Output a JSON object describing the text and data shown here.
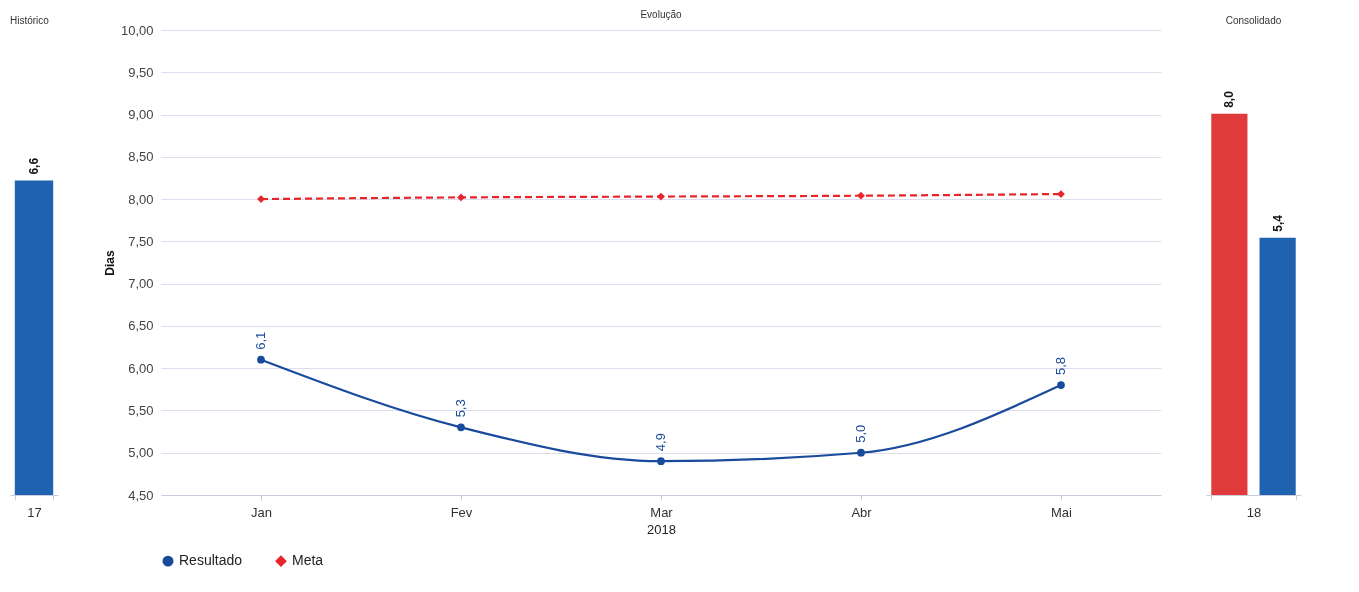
{
  "chart_data": [
    {
      "type": "bar",
      "title": "Histórico",
      "categories": [
        "17"
      ],
      "values": [
        6.6
      ],
      "value_labels": [
        "6,6"
      ],
      "color": "#1f63b0",
      "tick_labels": "x"
    },
    {
      "type": "line",
      "title": "Evolução",
      "categories": [
        "Jan",
        "Fev",
        "Mar",
        "Abr",
        "Mai"
      ],
      "xlabel": "2018",
      "ylabel": "Dias",
      "ylim": [
        4.5,
        10
      ],
      "yticks": [
        {
          "value": 4.5,
          "label": "4,50"
        },
        {
          "value": 5,
          "label": "5,00"
        },
        {
          "value": 5.5,
          "label": "5,50"
        },
        {
          "value": 6,
          "label": "6,00"
        },
        {
          "value": 6.5,
          "label": "6,50"
        },
        {
          "value": 7,
          "label": "7,00"
        },
        {
          "value": 7.5,
          "label": "7,50"
        },
        {
          "value": 8,
          "label": "8,00"
        },
        {
          "value": 8.5,
          "label": "8,50"
        },
        {
          "value": 9,
          "label": "9,00"
        },
        {
          "value": 9.5,
          "label": "9,50"
        },
        {
          "value": 10,
          "label": "10,00"
        }
      ],
      "grid": "y",
      "legend": "bottom",
      "series": [
        {
          "name": "Resultado",
          "color": "#1a4a9c",
          "values": [
            6.1,
            5.3,
            4.9,
            5.0,
            5.8
          ],
          "value_labels": [
            "6,1",
            "5,3",
            "4,9",
            "5,0",
            "5,8"
          ],
          "marker": "circle"
        },
        {
          "name": "Meta",
          "color": "#e8262a",
          "values": [
            8.0,
            8.02,
            8.03,
            8.04,
            8.06
          ],
          "marker": "diamond",
          "line_style": "dashed"
        }
      ]
    },
    {
      "type": "bar",
      "title": "Consolidado",
      "categories": [
        "18"
      ],
      "tick_labels": "x",
      "series": [
        {
          "color": "#e03a3a",
          "values": [
            8.0
          ],
          "value_labels": [
            "8,0"
          ]
        },
        {
          "color": "#1f63b0",
          "values": [
            5.4
          ],
          "value_labels": [
            "5,4"
          ]
        }
      ]
    }
  ]
}
